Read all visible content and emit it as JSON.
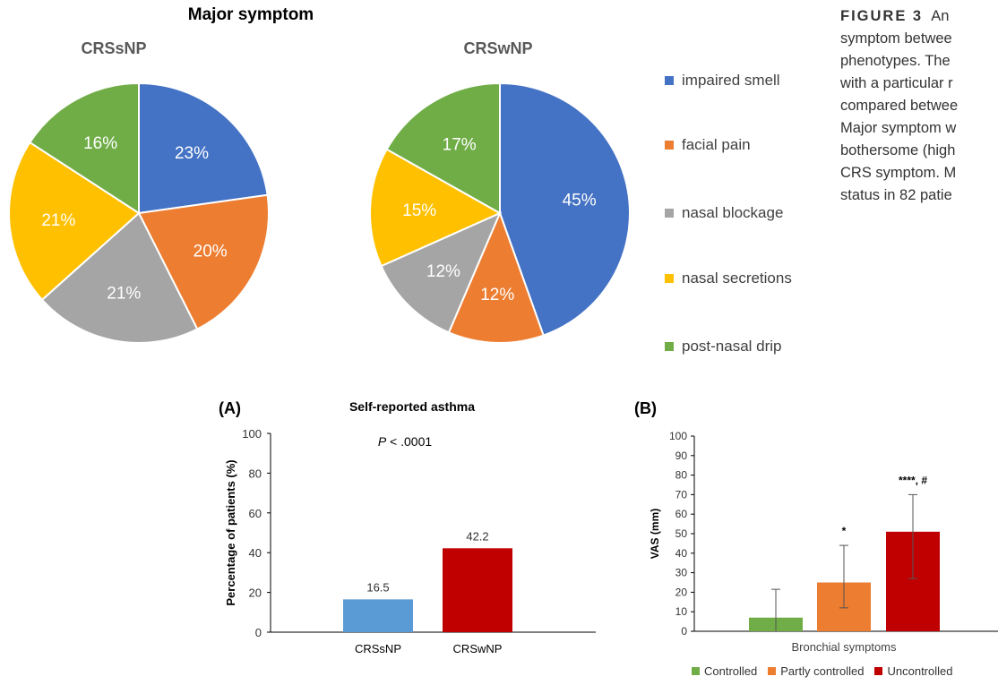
{
  "figure": {
    "title": "Major symptom",
    "caption_label": "FIGURE 3",
    "caption_lines": [
      "An",
      "symptom betwee",
      "phenotypes. The",
      "with a particular r",
      "compared betwee",
      "Major symptom w",
      "bothersome (high",
      "CRS symptom. M",
      "status in 82 patie"
    ]
  },
  "colors": {
    "impaired_smell": "#4472C4",
    "facial_pain": "#ED7D31",
    "nasal_blockage": "#A5A5A5",
    "nasal_secretions": "#FFC000",
    "post_nasal_drip": "#70AD47",
    "crssnp_bar": "#5B9BD5",
    "crswnp_bar": "#C00000",
    "controlled": "#70AD47",
    "partly_controlled": "#ED7D31",
    "uncontrolled": "#C00000"
  },
  "legend": {
    "items": [
      "impaired smell",
      "facial pain",
      "nasal blockage",
      "nasal secretions",
      "post-nasal drip"
    ]
  },
  "chart_data": [
    {
      "type": "pie",
      "title": "CRSsNP",
      "categories": [
        "impaired smell",
        "facial pain",
        "nasal blockage",
        "nasal secretions",
        "post-nasal drip"
      ],
      "values": [
        23,
        20,
        21,
        21,
        16
      ],
      "labels": [
        "23%",
        "20%",
        "21%",
        "21%",
        "16%"
      ]
    },
    {
      "type": "pie",
      "title": "CRSwNP",
      "categories": [
        "impaired smell",
        "facial pain",
        "nasal blockage",
        "nasal secretions",
        "post-nasal drip"
      ],
      "values": [
        45,
        12,
        12,
        15,
        17
      ],
      "labels": [
        "45%",
        "12%",
        "12%",
        "15%",
        "17%"
      ]
    },
    {
      "type": "bar",
      "panel": "(A)",
      "title": "Self-reported asthma",
      "annotation": "P < .0001",
      "annotation_italic": "P",
      "annotation_rest": " < .0001",
      "ylabel": "Percentage of patients (%)",
      "ylim": [
        0,
        100
      ],
      "yticks": [
        "0",
        "20",
        "40",
        "60",
        "80",
        "100"
      ],
      "categories": [
        "CRSsNP",
        "CRSwNP"
      ],
      "values": [
        16.5,
        42.2
      ],
      "labels": [
        "16.5",
        "42.2"
      ]
    },
    {
      "type": "bar",
      "panel": "(B)",
      "ylabel": "VAS (mm)",
      "xlabel": "Bronchial symptoms",
      "ylim": [
        0,
        100
      ],
      "yticks": [
        "0",
        "10",
        "20",
        "30",
        "40",
        "50",
        "60",
        "70",
        "80",
        "90",
        "100"
      ],
      "series": [
        {
          "name": "Controlled",
          "values": [
            7
          ],
          "error": [
            0,
            21.5
          ]
        },
        {
          "name": "Partly controlled",
          "values": [
            25
          ],
          "error": [
            12,
            44
          ],
          "annotation": "*"
        },
        {
          "name": "Uncontrolled",
          "values": [
            51
          ],
          "error": [
            27,
            70
          ],
          "annotation": "****, #"
        }
      ]
    }
  ]
}
